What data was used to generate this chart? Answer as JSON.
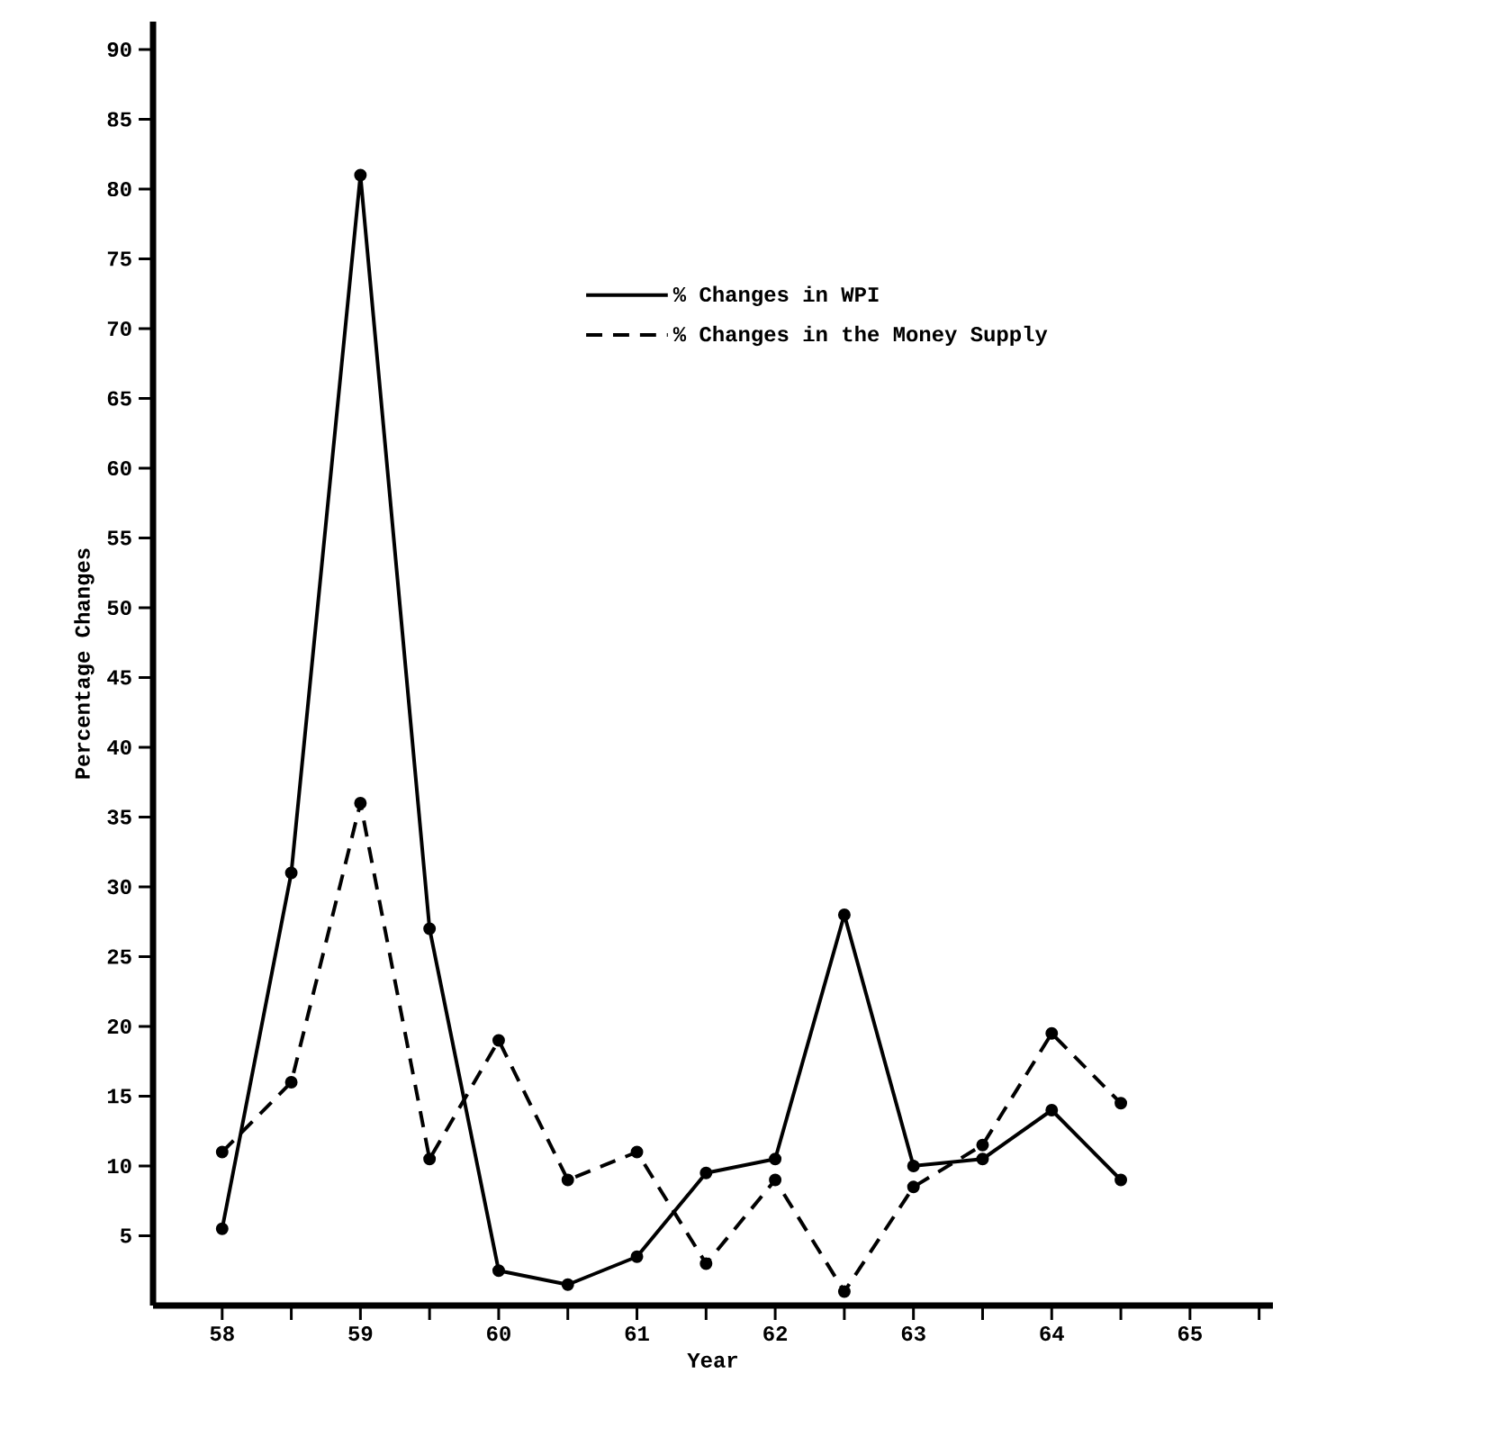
{
  "chart_data": {
    "type": "line",
    "xlabel": "Year",
    "ylabel": "Percentage Changes",
    "x": [
      58,
      58.5,
      59,
      59.5,
      60,
      60.5,
      61,
      61.5,
      62,
      62.5,
      63,
      63.5,
      64,
      64.5
    ],
    "series": [
      {
        "name": "% Changes in WPI",
        "color": "#000000",
        "line_style": "solid",
        "values": [
          5.5,
          31,
          81,
          27,
          2.5,
          1.5,
          3.5,
          9.5,
          10.5,
          28,
          10,
          10.5,
          14,
          9
        ]
      },
      {
        "name": "% Changes in the Money Supply",
        "color": "#000000",
        "line_style": "dashed",
        "values": [
          11,
          16,
          36,
          10.5,
          19,
          9,
          11,
          3,
          9,
          1,
          8.5,
          11.5,
          19.5,
          14.5
        ]
      }
    ],
    "xlim": [
      57.5,
      65.6
    ],
    "ylim": [
      0,
      92
    ],
    "xticks": [
      58,
      {
        "value": 58.5,
        "label": null
      },
      59,
      {
        "value": 59.5,
        "label": null
      },
      60,
      {
        "value": 60.5,
        "label": null
      },
      61,
      {
        "value": 61.5,
        "label": null
      },
      62,
      {
        "value": 62.5,
        "label": null
      },
      63,
      {
        "value": 63.5,
        "label": null
      },
      64,
      {
        "value": 64.5,
        "label": null
      },
      65,
      {
        "value": 65.5,
        "label": null
      }
    ],
    "yticks": [
      5,
      10,
      15,
      20,
      25,
      30,
      35,
      40,
      45,
      50,
      55,
      60,
      65,
      70,
      75,
      80,
      85,
      90
    ],
    "grid": false,
    "legend": "top right",
    "marker": "circle"
  }
}
